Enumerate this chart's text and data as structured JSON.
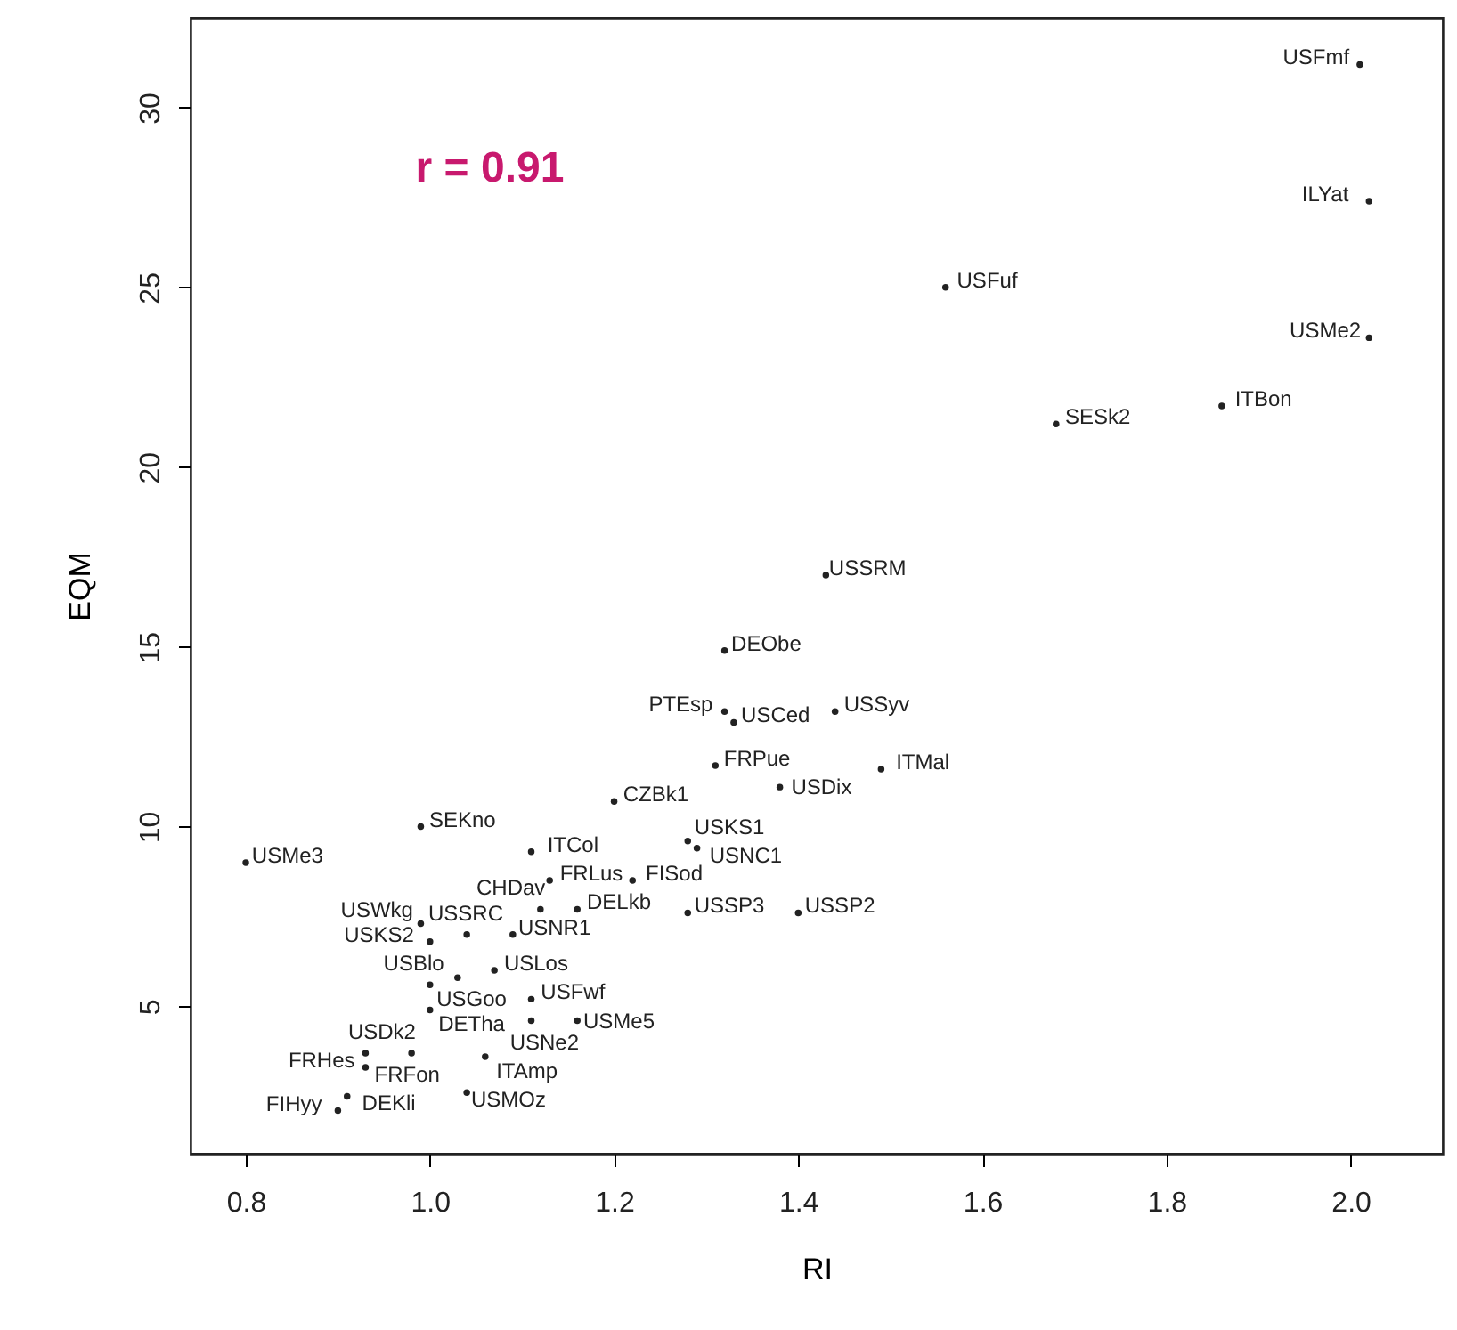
{
  "chart_data": {
    "type": "scatter",
    "xlabel": "RI",
    "ylabel": "EQM",
    "xlim": [
      0.74,
      2.1
    ],
    "ylim": [
      0.9,
      32.5
    ],
    "xticks": [
      {
        "value": 0.8,
        "label": "0.8"
      },
      {
        "value": 1,
        "label": "1.0"
      },
      {
        "value": 1.2,
        "label": "1.2"
      },
      {
        "value": 1.4,
        "label": "1.4"
      },
      {
        "value": 1.6,
        "label": "1.6"
      },
      {
        "value": 1.8,
        "label": "1.8"
      },
      {
        "value": 2,
        "label": "2.0"
      }
    ],
    "yticks": [
      5,
      10,
      15,
      20,
      25,
      30
    ],
    "grid": false,
    "marker": "circle",
    "annotations": [
      "r = 0.91"
    ],
    "series": [
      {
        "color": "#222222",
        "x": [
          2.01,
          2.02,
          2.02,
          1.56,
          1.68,
          1.86,
          1.43,
          1.32,
          1.32,
          1.33,
          1.44,
          1.31,
          1.38,
          1.49,
          1.2,
          0.99,
          0.8,
          1.28,
          1.29,
          1.11,
          1.13,
          1.22,
          1.12,
          1.16,
          1.28,
          1.4,
          0.99,
          1.04,
          1.09,
          1.0,
          1.07,
          1.0,
          1.03,
          1.0,
          1.11,
          1.16,
          1.11,
          0.93,
          0.98,
          1.06,
          0.93,
          1.04,
          0.91,
          0.9
        ],
        "values": [
          31.2,
          27.4,
          23.6,
          25.0,
          21.2,
          21.7,
          17.0,
          14.9,
          13.2,
          12.9,
          13.2,
          11.7,
          11.1,
          11.6,
          10.7,
          10.0,
          9.0,
          9.6,
          9.4,
          9.3,
          8.5,
          8.5,
          7.7,
          7.7,
          7.6,
          7.6,
          7.3,
          7.0,
          7.0,
          6.8,
          6.0,
          5.6,
          5.8,
          4.9,
          5.2,
          4.6,
          4.6,
          3.3,
          3.7,
          3.6,
          3.7,
          2.6,
          2.5,
          2.1
        ],
        "value_labels": [
          "USFmf",
          "ILYat",
          "USMe2",
          "USFuf",
          "SESk2",
          "ITBon",
          "USSRM",
          "DEObe",
          "PTEsp",
          "USCed",
          "USSyv",
          "FRPue",
          "USDix",
          "ITMal",
          "CZBk1",
          "SEKno",
          "USMe3",
          "USKS1",
          "USNC1",
          "ITCol",
          "FRLus",
          "FISod",
          "CHDav",
          "DELkb",
          "USSP3",
          "USSP2",
          "USWkg",
          "USSRC",
          "USNR1",
          "USKS2",
          "USLos",
          "USGoo",
          "USBlo",
          "DETha",
          "USFwf",
          "USMe5",
          "USNe2",
          "FRFon",
          "USDk2",
          "ITAmp",
          "FRHes",
          "USMOz",
          "DEKli",
          "FIHyy"
        ]
      }
    ]
  }
}
